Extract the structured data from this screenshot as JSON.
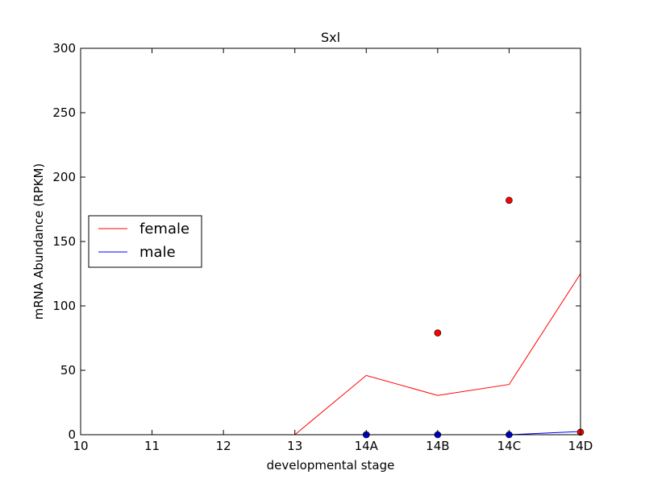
{
  "chart_data": {
    "type": "line",
    "title": "Sxl",
    "xlabel": "developmental stage",
    "ylabel": "mRNA Abundance (RPKM)",
    "categories": [
      "10",
      "11",
      "12",
      "13",
      "14A",
      "14B",
      "14C",
      "14D"
    ],
    "ylim": [
      0,
      300
    ],
    "yticks": [
      0,
      50,
      100,
      150,
      200,
      250,
      300
    ],
    "grid": false,
    "legend_position": "center-left",
    "series": [
      {
        "name": "female",
        "color": "#ff0000",
        "values": [
          0,
          0,
          0,
          0,
          46,
          30.5,
          39,
          125
        ],
        "points": [
          {
            "x": "14A",
            "y": 0
          },
          {
            "x": "14B",
            "y": 79
          },
          {
            "x": "14C",
            "y": 182
          },
          {
            "x": "14D",
            "y": 2
          }
        ]
      },
      {
        "name": "male",
        "color": "#0000ff",
        "values": [
          0,
          0,
          0,
          0,
          0,
          0,
          0,
          2.5
        ],
        "points": [
          {
            "x": "14A",
            "y": 0
          },
          {
            "x": "14B",
            "y": 0
          },
          {
            "x": "14C",
            "y": 0
          }
        ]
      }
    ]
  }
}
